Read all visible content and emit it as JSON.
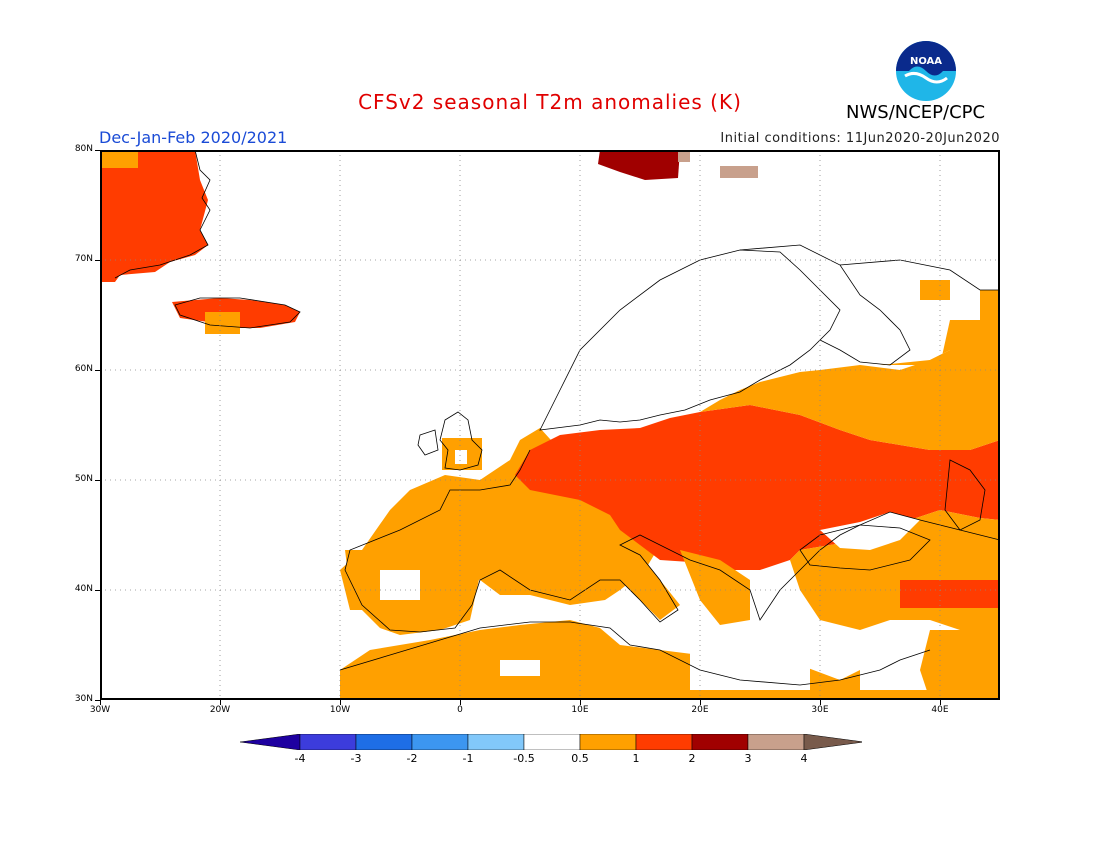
{
  "title": "CFSv2 seasonal T2m anomalies (K)",
  "period": "Dec-Jan-Feb 2020/2021",
  "initial_conditions": "Initial conditions: 11Jun2020-20Jun2020",
  "agency": "NWS/NCEP/CPC",
  "logo_text": "NOAA",
  "map": {
    "lon_range": [
      -30,
      45
    ],
    "lat_range": [
      30,
      80
    ],
    "lat_labels": [
      "80N",
      "70N",
      "60N",
      "50N",
      "40N",
      "30N"
    ],
    "lon_labels": [
      "30W",
      "20W",
      "10W",
      "0",
      "10E",
      "20E",
      "30E",
      "40E"
    ],
    "anomaly_regions": [
      {
        "name": "greenland-east",
        "level": "1 to 2",
        "color": "#ff3c00"
      },
      {
        "name": "iceland",
        "level": "1 to 2",
        "color": "#ff3c00"
      },
      {
        "name": "svalbard",
        "level": "2 to 3",
        "color": "#a00000"
      },
      {
        "name": "central-eastern-europe",
        "level": "1 to 2",
        "color": "#ff3c00"
      },
      {
        "name": "western-europe",
        "level": "0.5 to 1",
        "color": "#ffa000"
      },
      {
        "name": "north-africa",
        "level": "0.5 to 1",
        "color": "#ffa000"
      },
      {
        "name": "russia-east",
        "level": "0.5 to 1",
        "color": "#ffa000"
      }
    ]
  },
  "legend": {
    "levels": [
      "-4",
      "-3",
      "-2",
      "-1",
      "-0.5",
      "0.5",
      "1",
      "2",
      "3",
      "4"
    ],
    "colors": [
      "#1e00a0",
      "#3c3cdc",
      "#1e6ee6",
      "#3c96f0",
      "#82c8fa",
      "#ffffff",
      "#ffa000",
      "#ff3c00",
      "#a00000",
      "#c8a08c",
      "#785a4b"
    ]
  }
}
